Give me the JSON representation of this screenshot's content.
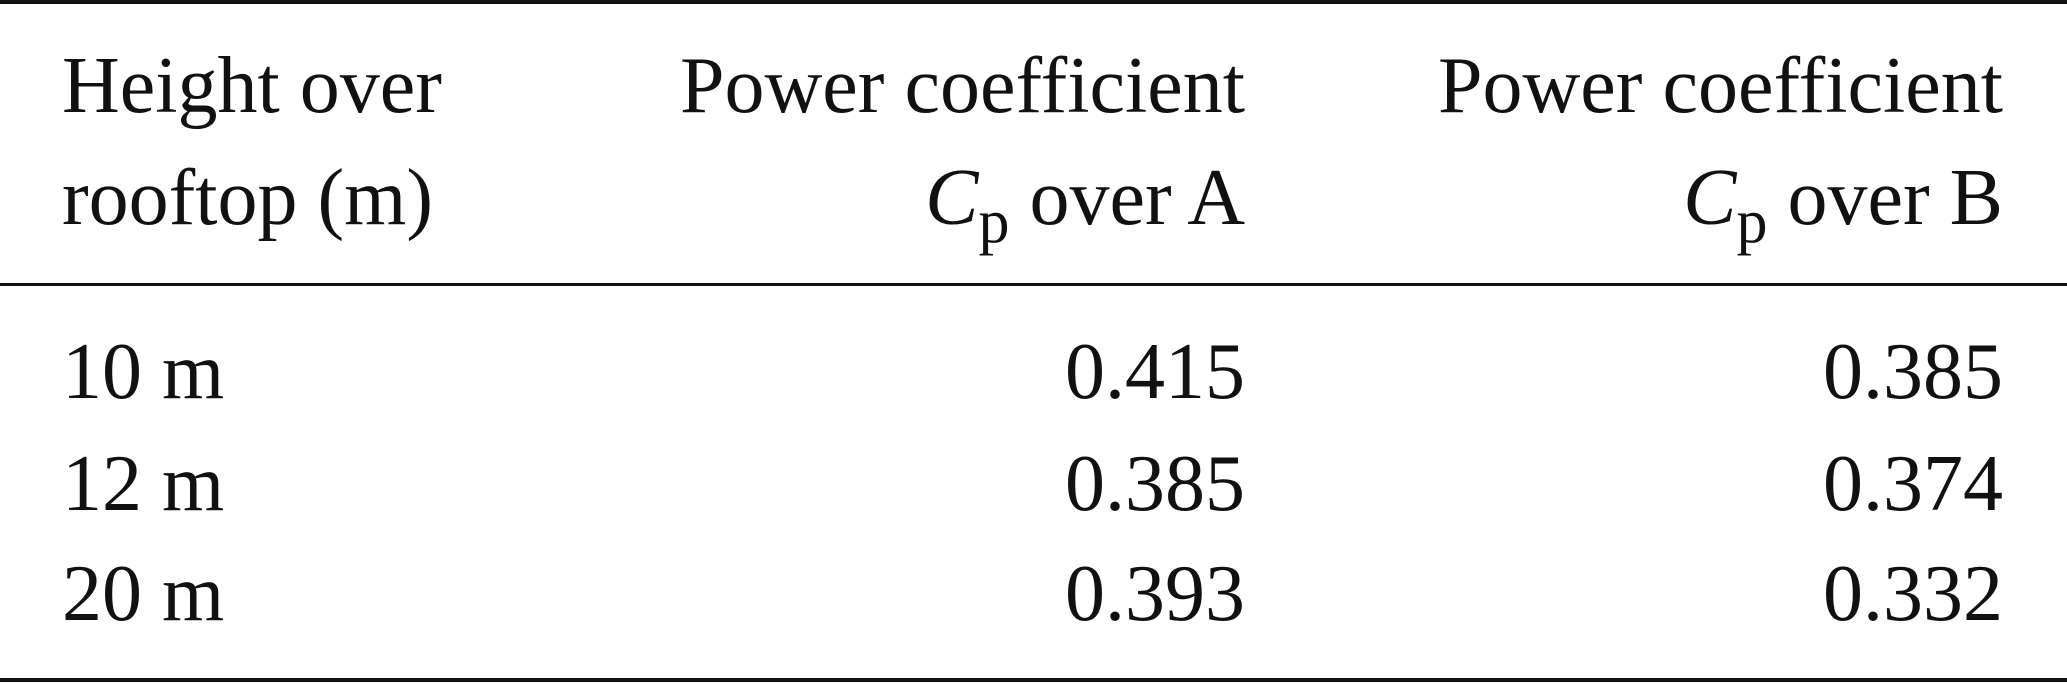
{
  "table": {
    "header": [
      {
        "line1": "Height over",
        "line2": "rooftop (m)"
      },
      {
        "line1": "Power coefficient",
        "symbol": "C",
        "subscript": "p",
        "line2": "over A"
      },
      {
        "line1": "Power coefficient",
        "symbol": "C",
        "subscript": "p",
        "line2": "over B"
      }
    ],
    "rows": [
      [
        "10 m",
        "0.415",
        "0.385"
      ],
      [
        "12 m",
        "0.385",
        "0.374"
      ],
      [
        "20 m",
        "0.393",
        "0.332"
      ]
    ]
  }
}
